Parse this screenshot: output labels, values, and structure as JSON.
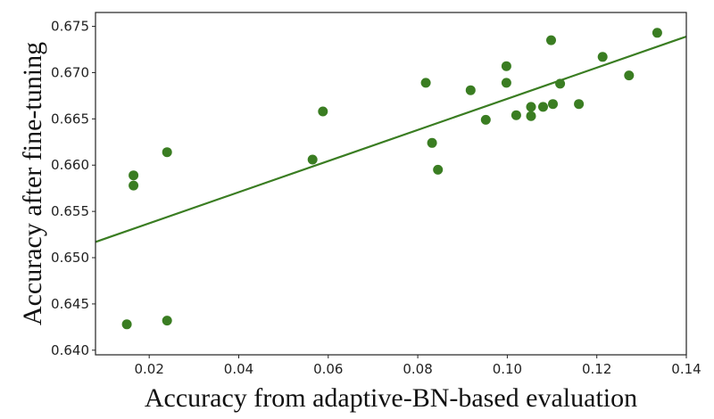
{
  "chart_data": {
    "type": "scatter",
    "title": "",
    "xlabel": "Accuracy from adaptive-BN-based evaluation",
    "ylabel": "Accuracy after fine-tuning",
    "xlim": [
      0.008,
      0.14
    ],
    "ylim": [
      0.6395,
      0.6765
    ],
    "x_ticks": [
      0.02,
      0.04,
      0.06,
      0.08,
      0.1,
      0.12,
      0.14
    ],
    "x_tick_labels": [
      "0.02",
      "0.04",
      "0.06",
      "0.08",
      "0.10",
      "0.12",
      "0.14"
    ],
    "y_ticks": [
      0.64,
      0.645,
      0.65,
      0.655,
      0.66,
      0.665,
      0.67,
      0.675
    ],
    "y_tick_labels": [
      "0.640",
      "0.645",
      "0.650",
      "0.655",
      "0.660",
      "0.665",
      "0.670",
      "0.675"
    ],
    "grid": false,
    "legend": "none",
    "marker_color": "#3a7d22",
    "line_color": "#3a7d22",
    "points": [
      {
        "x": 0.015,
        "y": 0.6428
      },
      {
        "x": 0.0165,
        "y": 0.6589
      },
      {
        "x": 0.0165,
        "y": 0.6578
      },
      {
        "x": 0.024,
        "y": 0.6614
      },
      {
        "x": 0.024,
        "y": 0.6432
      },
      {
        "x": 0.0565,
        "y": 0.6606
      },
      {
        "x": 0.0588,
        "y": 0.6658
      },
      {
        "x": 0.0818,
        "y": 0.6689
      },
      {
        "x": 0.0832,
        "y": 0.6624
      },
      {
        "x": 0.0845,
        "y": 0.6595
      },
      {
        "x": 0.0918,
        "y": 0.6681
      },
      {
        "x": 0.0952,
        "y": 0.6649
      },
      {
        "x": 0.0998,
        "y": 0.6707
      },
      {
        "x": 0.0998,
        "y": 0.6689
      },
      {
        "x": 0.102,
        "y": 0.6654
      },
      {
        "x": 0.1053,
        "y": 0.6663
      },
      {
        "x": 0.1053,
        "y": 0.6653
      },
      {
        "x": 0.108,
        "y": 0.6663
      },
      {
        "x": 0.1098,
        "y": 0.6735
      },
      {
        "x": 0.1102,
        "y": 0.6666
      },
      {
        "x": 0.1118,
        "y": 0.6688
      },
      {
        "x": 0.116,
        "y": 0.6666
      },
      {
        "x": 0.1213,
        "y": 0.6717
      },
      {
        "x": 0.1272,
        "y": 0.6697
      },
      {
        "x": 0.1335,
        "y": 0.6743
      }
    ],
    "fit_line": {
      "x": [
        0.008,
        0.14
      ],
      "y": [
        0.6517,
        0.6739
      ]
    }
  }
}
